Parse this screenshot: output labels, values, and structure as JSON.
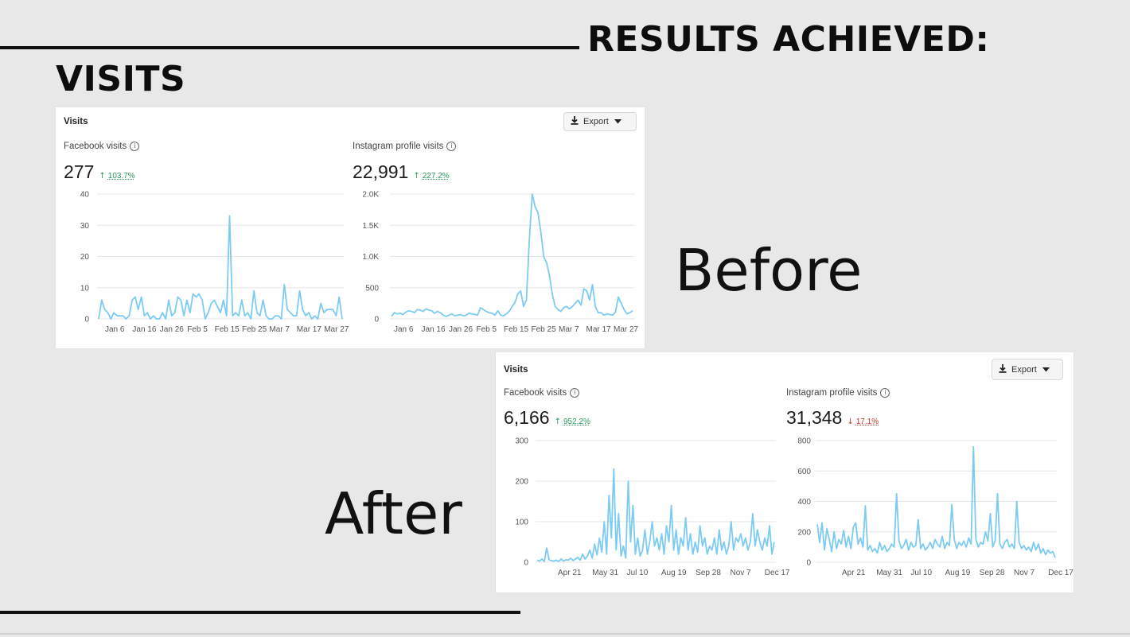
{
  "slide": {
    "results_heading": "RESULTS ACHIEVED:",
    "visits_heading": "VISITS",
    "before_label": "Before",
    "after_label": "After"
  },
  "colors": {
    "line": "#7ccbf2",
    "grid": "#e6e6e6",
    "up": "#2a9a5c",
    "down": "#c0392b",
    "background": "#e8e8e8"
  },
  "before": {
    "title": "Visits",
    "export_label": "Export",
    "export_icon": "download-icon",
    "facebook": {
      "label": "Facebook visits",
      "value": "277",
      "delta_direction": "up",
      "delta": "103.7%"
    },
    "instagram": {
      "label": "Instagram profile visits",
      "value": "22,991",
      "delta_direction": "up",
      "delta": "227.2%"
    }
  },
  "after": {
    "title": "Visits",
    "export_label": "Export",
    "export_icon": "download-icon",
    "facebook": {
      "label": "Facebook visits",
      "value": "6,166",
      "delta_direction": "up",
      "delta": "952.2%"
    },
    "instagram": {
      "label": "Instagram profile visits",
      "value": "31,348",
      "delta_direction": "down",
      "delta": "17.1%"
    }
  },
  "chart_data": [
    {
      "type": "line",
      "id": "before-facebook",
      "ylim": [
        0,
        40
      ],
      "yticks": [
        0,
        10,
        20,
        30,
        40
      ],
      "ytick_labels": [
        "0",
        "10",
        "20",
        "30",
        "40"
      ],
      "xtick_labels": [
        "Jan 6",
        "Jan 16",
        "Jan 26",
        "Feb 5",
        "Feb 15",
        "Feb 25",
        "Mar 7",
        "Mar 17",
        "Mar 27"
      ],
      "x_start": "Dec 29",
      "values": [
        0,
        6,
        3,
        2,
        0,
        2,
        1,
        1,
        1,
        0,
        1,
        6,
        7,
        3,
        7,
        1,
        2,
        0,
        1,
        0,
        0,
        2,
        0,
        6,
        1,
        2,
        7,
        6,
        1,
        6,
        2,
        8,
        7,
        8,
        6,
        0,
        2,
        5,
        6,
        4,
        2,
        6,
        1,
        33,
        1,
        2,
        1,
        6,
        1,
        2,
        0,
        9,
        2,
        1,
        6,
        1,
        0,
        0,
        1,
        1,
        0,
        11,
        3,
        2,
        1,
        1,
        9,
        3,
        1,
        2,
        0,
        1,
        0,
        5,
        2,
        3,
        3,
        3,
        1,
        7,
        0
      ]
    },
    {
      "type": "line",
      "id": "before-instagram",
      "ylim": [
        0,
        2000
      ],
      "yticks": [
        0,
        500,
        1000,
        1500,
        2000
      ],
      "ytick_labels": [
        "0",
        "500",
        "1.0K",
        "1.5K",
        "2.0K"
      ],
      "xtick_labels": [
        "Jan 6",
        "Jan 16",
        "Jan 26",
        "Feb 5",
        "Feb 15",
        "Feb 25",
        "Mar 7",
        "Mar 17",
        "Mar 27"
      ],
      "x_start": "Dec 29",
      "values": [
        40,
        100,
        80,
        90,
        70,
        110,
        130,
        120,
        100,
        150,
        140,
        120,
        160,
        140,
        130,
        90,
        120,
        100,
        60,
        40,
        60,
        80,
        50,
        60,
        70,
        50,
        60,
        90,
        80,
        70,
        60,
        180,
        150,
        120,
        100,
        90,
        60,
        130,
        60,
        50,
        80,
        120,
        200,
        260,
        400,
        450,
        200,
        300,
        1250,
        2000,
        1800,
        1700,
        1400,
        1000,
        900,
        700,
        400,
        200,
        150,
        120,
        180,
        200,
        160,
        200,
        250,
        300,
        220,
        480,
        450,
        300,
        550,
        200,
        100,
        100,
        60,
        80,
        70,
        60,
        110,
        350,
        250,
        150,
        80,
        100,
        130
      ]
    },
    {
      "type": "line",
      "id": "after-facebook",
      "ylim": [
        0,
        300
      ],
      "yticks": [
        0,
        100,
        200,
        300
      ],
      "ytick_labels": [
        "0",
        "100",
        "200",
        "300"
      ],
      "xtick_labels": [
        "Apr 21",
        "May 31",
        "Jul 10",
        "Aug 19",
        "Sep 28",
        "Nov 7",
        "Dec 17"
      ],
      "x_start": "Apr 7",
      "values": [
        5,
        3,
        8,
        2,
        35,
        6,
        4,
        3,
        5,
        2,
        8,
        3,
        6,
        5,
        10,
        4,
        8,
        12,
        5,
        20,
        8,
        15,
        30,
        10,
        45,
        18,
        60,
        25,
        100,
        20,
        165,
        60,
        230,
        30,
        120,
        15,
        40,
        10,
        200,
        50,
        140,
        20,
        60,
        15,
        30,
        80,
        20,
        50,
        100,
        40,
        60,
        30,
        70,
        20,
        90,
        50,
        140,
        30,
        80,
        20,
        60,
        40,
        110,
        30,
        70,
        20,
        50,
        25,
        90,
        40,
        60,
        20,
        40,
        30,
        60,
        20,
        80,
        30,
        50,
        20,
        40,
        100,
        30,
        60,
        50,
        70,
        40,
        60,
        30,
        50,
        120,
        40,
        80,
        50,
        30,
        60,
        40,
        90,
        20,
        50
      ]
    },
    {
      "type": "line",
      "id": "after-instagram",
      "ylim": [
        0,
        800
      ],
      "yticks": [
        0,
        200,
        400,
        600,
        800
      ],
      "ytick_labels": [
        "0",
        "200",
        "400",
        "600",
        "800"
      ],
      "xtick_labels": [
        "Apr 21",
        "May 31",
        "Jul 10",
        "Aug 19",
        "Sep 28",
        "Nov 7",
        "Dec 17"
      ],
      "x_start": "Apr 7",
      "values": [
        250,
        130,
        260,
        80,
        220,
        150,
        70,
        200,
        90,
        150,
        120,
        210,
        100,
        170,
        90,
        230,
        260,
        120,
        160,
        100,
        370,
        80,
        110,
        70,
        90,
        60,
        130,
        80,
        110,
        70,
        90,
        120,
        100,
        450,
        140,
        90,
        110,
        150,
        80,
        130,
        100,
        110,
        280,
        90,
        120,
        80,
        100,
        130,
        90,
        150,
        120,
        100,
        170,
        90,
        130,
        110,
        380,
        150,
        90,
        130,
        110,
        140,
        100,
        160,
        120,
        760,
        150,
        100,
        130,
        120,
        200,
        140,
        320,
        100,
        140,
        450,
        120,
        90,
        130,
        150,
        100,
        120,
        90,
        400,
        130,
        90,
        110,
        80,
        100,
        70,
        130,
        80,
        120,
        60,
        90,
        50,
        80,
        60,
        70,
        30
      ]
    }
  ]
}
